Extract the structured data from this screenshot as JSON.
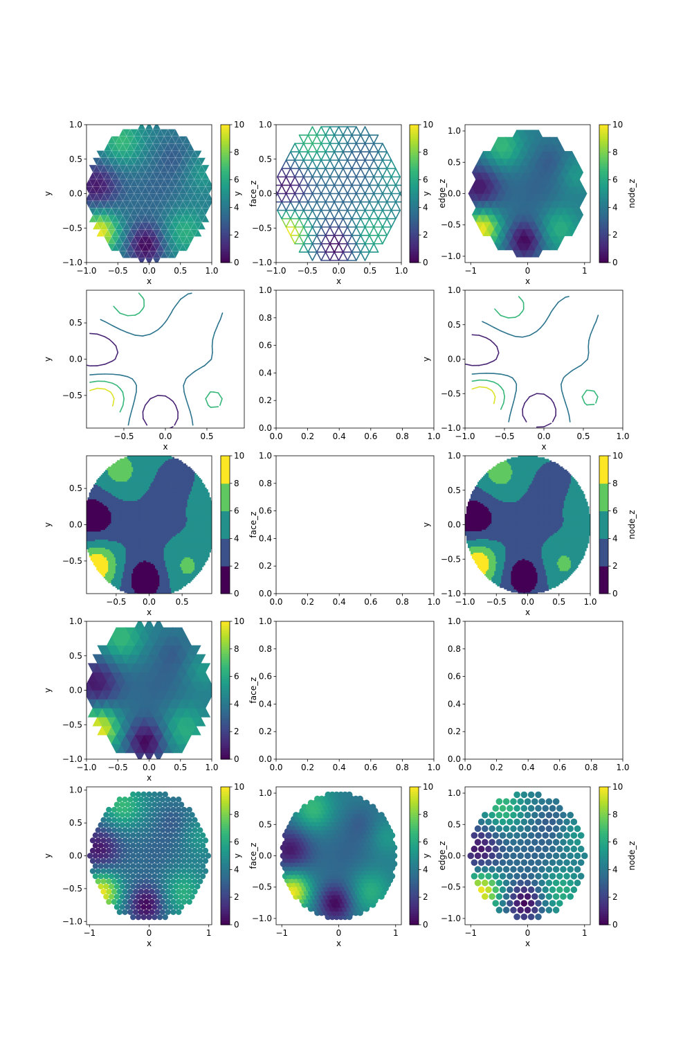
{
  "colormap": "viridis",
  "colors": {
    "viridis": [
      "#440154",
      "#482878",
      "#3e4989",
      "#31688e",
      "#26828e",
      "#1f9e89",
      "#35b779",
      "#6ece58",
      "#b5de2b",
      "#fde725"
    ],
    "axes": "#000000",
    "background": "#ffffff"
  },
  "chart_data": [
    {
      "id": "r1c1",
      "row": 1,
      "col": 1,
      "type": "heatmap",
      "variant": "face-tripcolor",
      "domain": "unit-disk",
      "xlabel": "x",
      "ylabel": "y",
      "xlim": [
        -1,
        1
      ],
      "ylim": [
        -1,
        1
      ],
      "xticks": [
        "−1.0",
        "−0.5",
        "0.0",
        "0.5",
        "1.0"
      ],
      "yticks": [
        "−1.0",
        "−0.5",
        "0.0",
        "0.5",
        "1.0"
      ],
      "colorbar": {
        "label": "face_z",
        "min": 0,
        "max": 10,
        "ticks": [
          "0",
          "2",
          "4",
          "6",
          "8",
          "10"
        ]
      }
    },
    {
      "id": "r1c2",
      "row": 1,
      "col": 2,
      "type": "line",
      "variant": "edge-mesh",
      "domain": "unit-disk",
      "xlabel": "x",
      "ylabel": "y",
      "xlim": [
        -1,
        1
      ],
      "ylim": [
        -1,
        1
      ],
      "xticks": [
        "−1.0",
        "−0.5",
        "0.0",
        "0.5",
        "1.0"
      ],
      "yticks": [
        "−1.0",
        "−0.5",
        "0.0",
        "0.5",
        "1.0"
      ],
      "colorbar": {
        "label": "edge_z",
        "min": 0,
        "max": 10,
        "ticks": [
          "0",
          "2",
          "4",
          "6",
          "8",
          "10"
        ]
      }
    },
    {
      "id": "r1c3",
      "row": 1,
      "col": 3,
      "type": "heatmap",
      "variant": "node-tripcolor",
      "domain": "unit-disk",
      "xlabel": "x",
      "ylabel": "y",
      "xlim": [
        -1.1,
        1.1
      ],
      "ylim": [
        -1.1,
        1.1
      ],
      "xticks": [
        "−1",
        "0",
        "1"
      ],
      "yticks": [
        "−1.0",
        "−0.5",
        "0.0",
        "0.5",
        "1.0"
      ],
      "colorbar": {
        "label": "node_z",
        "min": 0,
        "max": 10,
        "ticks": [
          "0",
          "2",
          "4",
          "6",
          "8",
          "10"
        ]
      }
    },
    {
      "id": "r2c1",
      "row": 2,
      "col": 1,
      "type": "line",
      "variant": "contour",
      "xlabel": "x",
      "ylabel": "y",
      "xlim": [
        -0.95,
        0.95
      ],
      "ylim": [
        -0.95,
        0.95
      ],
      "xticks": [
        "−0.5",
        "0.0",
        "0.5"
      ],
      "yticks": [
        "−0.5",
        "0.0",
        "0.5"
      ],
      "levels": [
        2,
        4,
        6,
        8
      ]
    },
    {
      "id": "r2c2",
      "row": 2,
      "col": 2,
      "type": "empty",
      "xlim": [
        0,
        1
      ],
      "ylim": [
        0,
        1
      ],
      "xticks": [
        "0.0",
        "0.2",
        "0.4",
        "0.6",
        "0.8",
        "1.0"
      ],
      "yticks": [
        "0.0",
        "0.2",
        "0.4",
        "0.6",
        "0.8",
        "1.0"
      ]
    },
    {
      "id": "r2c3",
      "row": 2,
      "col": 3,
      "type": "line",
      "variant": "contour",
      "xlabel": "x",
      "ylabel": "y",
      "xlim": [
        -1,
        1
      ],
      "ylim": [
        -1,
        1
      ],
      "xticks": [
        "−1.0",
        "−0.5",
        "0.0",
        "0.5",
        "1.0"
      ],
      "yticks": [
        "−1.0",
        "−0.5",
        "0.0",
        "0.5",
        "1.0"
      ],
      "levels": [
        2,
        4,
        6,
        8
      ]
    },
    {
      "id": "r3c1",
      "row": 3,
      "col": 1,
      "type": "area",
      "variant": "contourf",
      "domain": "unit-disk",
      "xlabel": "x",
      "ylabel": "y",
      "xlim": [
        -0.95,
        0.95
      ],
      "ylim": [
        -0.95,
        0.95
      ],
      "xticks": [
        "−0.5",
        "0.0",
        "0.5"
      ],
      "yticks": [
        "−0.5",
        "0.0",
        "0.5"
      ],
      "colorbar": {
        "label": "face_z",
        "min": 0,
        "max": 10,
        "ticks": [
          "0",
          "2",
          "4",
          "6",
          "8",
          "10"
        ],
        "discrete": true
      }
    },
    {
      "id": "r3c2",
      "row": 3,
      "col": 2,
      "type": "empty",
      "xlim": [
        0,
        1
      ],
      "ylim": [
        0,
        1
      ],
      "xticks": [
        "0.0",
        "0.2",
        "0.4",
        "0.6",
        "0.8",
        "1.0"
      ],
      "yticks": [
        "0.0",
        "0.2",
        "0.4",
        "0.6",
        "0.8",
        "1.0"
      ]
    },
    {
      "id": "r3c3",
      "row": 3,
      "col": 3,
      "type": "area",
      "variant": "contourf",
      "domain": "unit-disk",
      "xlabel": "x",
      "ylabel": "y",
      "xlim": [
        -1,
        1
      ],
      "ylim": [
        -1,
        1
      ],
      "xticks": [
        "−1.0",
        "−0.5",
        "0.0",
        "0.5",
        "1.0"
      ],
      "yticks": [
        "−1.0",
        "−0.5",
        "0.0",
        "0.5",
        "1.0"
      ],
      "colorbar": {
        "label": "node_z",
        "min": 0,
        "max": 10,
        "ticks": [
          "0",
          "2",
          "4",
          "6",
          "8",
          "10"
        ],
        "discrete": true
      }
    },
    {
      "id": "r4c1",
      "row": 4,
      "col": 1,
      "type": "heatmap",
      "variant": "node-flat",
      "domain": "unit-disk",
      "xlabel": "x",
      "ylabel": "y",
      "xlim": [
        -1,
        1
      ],
      "ylim": [
        -1,
        1
      ],
      "xticks": [
        "−1.0",
        "−0.5",
        "0.0",
        "0.5",
        "1.0"
      ],
      "yticks": [
        "−1.0",
        "−0.5",
        "0.0",
        "0.5",
        "1.0"
      ],
      "colorbar": {
        "label": "face_z",
        "min": 0,
        "max": 10,
        "ticks": [
          "0",
          "2",
          "4",
          "6",
          "8",
          "10"
        ]
      }
    },
    {
      "id": "r4c2",
      "row": 4,
      "col": 2,
      "type": "empty",
      "xlim": [
        0,
        1
      ],
      "ylim": [
        0,
        1
      ],
      "xticks": [
        "0.0",
        "0.2",
        "0.4",
        "0.6",
        "0.8",
        "1.0"
      ],
      "yticks": [
        "0.0",
        "0.2",
        "0.4",
        "0.6",
        "0.8",
        "1.0"
      ]
    },
    {
      "id": "r4c3",
      "row": 4,
      "col": 3,
      "type": "empty",
      "xlim": [
        0,
        1
      ],
      "ylim": [
        0,
        1
      ],
      "xticks": [
        "0.0",
        "0.2",
        "0.4",
        "0.6",
        "0.8",
        "1.0"
      ],
      "yticks": [
        "0.0",
        "0.2",
        "0.4",
        "0.6",
        "0.8",
        "1.0"
      ]
    },
    {
      "id": "r5c1",
      "row": 5,
      "col": 1,
      "type": "scatter",
      "variant": "face-points",
      "domain": "unit-disk",
      "xlabel": "x",
      "ylabel": "y",
      "xlim": [
        -1.05,
        1.05
      ],
      "ylim": [
        -1.05,
        1.05
      ],
      "xticks": [
        "−1",
        "0",
        "1"
      ],
      "yticks": [
        "−1.0",
        "−0.5",
        "0.0",
        "0.5",
        "1.0"
      ],
      "colorbar": {
        "label": "face_z",
        "min": 0,
        "max": 10,
        "ticks": [
          "0",
          "2",
          "4",
          "6",
          "8",
          "10"
        ]
      }
    },
    {
      "id": "r5c2",
      "row": 5,
      "col": 2,
      "type": "scatter",
      "variant": "edge-points",
      "domain": "unit-disk",
      "xlabel": "x",
      "ylabel": "y",
      "xlim": [
        -1.1,
        1.1
      ],
      "ylim": [
        -1.1,
        1.1
      ],
      "xticks": [
        "−1",
        "0",
        "1"
      ],
      "yticks": [
        "−1.0",
        "−0.5",
        "0.0",
        "0.5",
        "1.0"
      ],
      "colorbar": {
        "label": "edge_z",
        "min": 0,
        "max": 10,
        "ticks": [
          "0",
          "2",
          "4",
          "6",
          "8",
          "10"
        ]
      }
    },
    {
      "id": "r5c3",
      "row": 5,
      "col": 3,
      "type": "scatter",
      "variant": "node-points",
      "domain": "unit-disk",
      "xlabel": "x",
      "ylabel": "y",
      "xlim": [
        -1.1,
        1.1
      ],
      "ylim": [
        -1.1,
        1.1
      ],
      "xticks": [
        "−1",
        "0",
        "1"
      ],
      "yticks": [
        "−1.0",
        "−0.5",
        "0.0",
        "0.5",
        "1.0"
      ],
      "colorbar": {
        "label": "node_z",
        "min": 0,
        "max": 10,
        "ticks": [
          "0",
          "2",
          "4",
          "6",
          "8",
          "10"
        ]
      }
    }
  ]
}
